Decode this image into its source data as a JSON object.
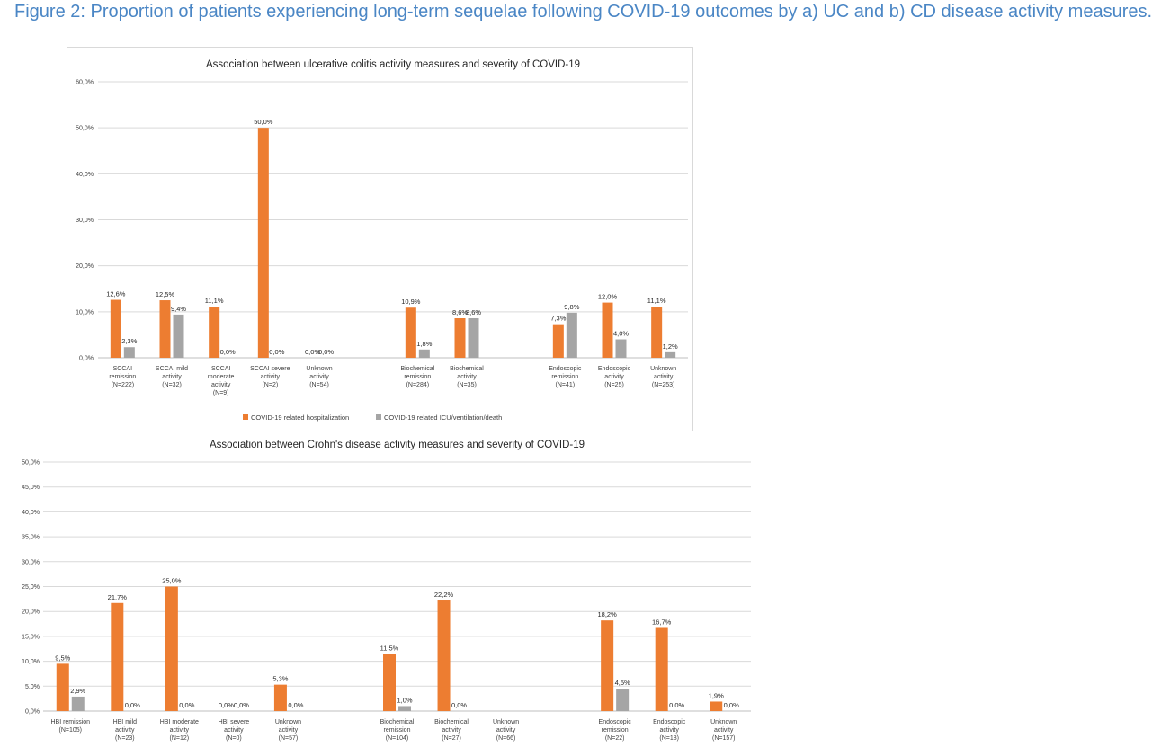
{
  "caption": "Figure 2: Proportion of patients experiencing long-term sequelae following COVID-19 outcomes by a) UC and b) CD disease activity measures.",
  "colors": {
    "hospitalization": "#ed7d31",
    "icu": "#a5a5a5",
    "grid": "#d9d9d9",
    "text": "#404040"
  },
  "chart_data": [
    {
      "type": "bar",
      "title": "Association between ulcerative colitis activity measures and severity of COVID-19",
      "ylim": [
        0,
        60
      ],
      "yticks": [
        "0,0%",
        "10,0%",
        "20,0%",
        "30,0%",
        "40,0%",
        "50,0%",
        "60,0%"
      ],
      "grid": true,
      "legend_position": "bottom",
      "categories": [
        [
          "SCCAI",
          "remission",
          "(N=222)"
        ],
        [
          "SCCAI mild",
          "activity",
          "(N=32)"
        ],
        [
          "SCCAI",
          "moderate",
          "activity",
          "(N=9)"
        ],
        [
          "SCCAI severe",
          "activity",
          "(N=2)"
        ],
        [
          "Unknown",
          "activity",
          "(N=54)"
        ],
        [],
        [
          "Biochemical",
          "remission",
          "(N=284)"
        ],
        [
          "Biochemical",
          "activity",
          "(N=35)"
        ],
        [],
        [
          "Endoscopic",
          "remission",
          "(N=41)"
        ],
        [
          "Endoscopic",
          "activity",
          "(N=25)"
        ],
        [
          "Unknown",
          "activity",
          "(N=253)"
        ]
      ],
      "series": [
        {
          "name": "COVID-19 related hospitalization",
          "values": [
            12.6,
            12.5,
            11.1,
            50.0,
            0.0,
            null,
            10.9,
            8.6,
            null,
            7.3,
            12.0,
            11.1
          ],
          "labels": [
            "12,6%",
            "12,5%",
            "11,1%",
            "50,0%",
            "0,0%",
            "",
            "10,9%",
            "8,6%",
            "",
            "7,3%",
            "12,0%",
            "11,1%"
          ]
        },
        {
          "name": "COVID-19 related ICU/ventilation/death",
          "values": [
            2.3,
            9.4,
            0.0,
            0.0,
            0.0,
            null,
            1.8,
            8.6,
            null,
            9.8,
            4.0,
            1.2
          ],
          "labels": [
            "2,3%",
            "9,4%",
            "0,0%",
            "0,0%",
            "0,0%",
            "",
            "1,8%",
            "8,6%",
            "",
            "9,8%",
            "4,0%",
            "1,2%"
          ]
        }
      ]
    },
    {
      "type": "bar",
      "title": "Association between Crohn's disease activity measures and severity of COVID-19",
      "ylim": [
        0,
        50
      ],
      "yticks": [
        "0,0%",
        "5,0%",
        "10,0%",
        "15,0%",
        "20,0%",
        "25,0%",
        "30,0%",
        "35,0%",
        "40,0%",
        "45,0%",
        "50,0%"
      ],
      "grid": true,
      "legend_position": "none",
      "categories": [
        [
          "HBI remission",
          "(N=105)"
        ],
        [
          "HBI mild",
          "activity",
          "(N=23)"
        ],
        [
          "HBI moderate",
          "activity",
          "(N=12)"
        ],
        [
          "HBI severe",
          "activity",
          "(N=0)"
        ],
        [
          "Unknown",
          "activity",
          "(N=57)"
        ],
        [],
        [
          "Biochemical",
          "remission",
          "(N=104)"
        ],
        [
          "Biochemical",
          "activity",
          "(N=27)"
        ],
        [
          "Unknown",
          "activity",
          "(N=66)"
        ],
        [],
        [
          "Endoscopic",
          "remission",
          "(N=22)"
        ],
        [
          "Endoscopic",
          "activity",
          "(N=18)"
        ],
        [
          "Unknown",
          "activity",
          "(N=157)"
        ]
      ],
      "series": [
        {
          "name": "COVID-19 related hospitalization",
          "values": [
            9.5,
            21.7,
            25.0,
            0.0,
            5.3,
            null,
            11.5,
            22.2,
            null,
            null,
            18.2,
            16.7,
            1.9
          ],
          "labels": [
            "9,5%",
            "21,7%",
            "25,0%",
            "0,0%",
            "5,3%",
            "",
            "11,5%",
            "22,2%",
            "",
            "",
            "18,2%",
            "16,7%",
            "1,9%"
          ]
        },
        {
          "name": "COVID-19 related ICU/ventilation/death",
          "values": [
            2.9,
            0.0,
            0.0,
            0.0,
            0.0,
            null,
            1.0,
            0.0,
            null,
            null,
            4.5,
            0.0,
            0.0
          ],
          "labels": [
            "2,9%",
            "0,0%",
            "0,0%",
            "0,0%",
            "0,0%",
            "",
            "1,0%",
            "0,0%",
            "",
            "",
            "4,5%",
            "0,0%",
            "0,0%"
          ]
        }
      ]
    }
  ]
}
